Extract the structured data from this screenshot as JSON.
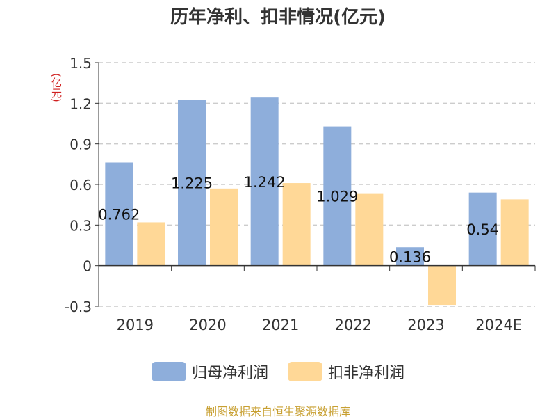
{
  "chart_data": {
    "type": "bar",
    "title": "历年净利、扣非情况(亿元)",
    "ylabel": "(亿元)",
    "categories": [
      "2019",
      "2020",
      "2021",
      "2022",
      "2023",
      "2024E"
    ],
    "series": [
      {
        "name": "归母净利润",
        "color": "#8eaedb",
        "values": [
          0.762,
          1.225,
          1.242,
          1.029,
          0.136,
          0.54
        ],
        "labels": [
          "0.762",
          "1.225",
          "1.242",
          "1.029",
          "0.136",
          "0.54"
        ]
      },
      {
        "name": "扣非净利润",
        "color": "#ffd897",
        "values": [
          0.32,
          0.57,
          0.61,
          0.53,
          -0.29,
          0.49
        ]
      }
    ],
    "ylim": [
      -0.3,
      1.5
    ],
    "yticks": [
      "1.5",
      "1.2",
      "0.9",
      "0.6",
      "0.3",
      "0",
      "-0.3"
    ],
    "ytick_values": [
      1.5,
      1.2,
      0.9,
      0.6,
      0.3,
      0,
      -0.3
    ],
    "grid": true,
    "legend_position": "bottom"
  },
  "source": "制图数据来自恒生聚源数据库"
}
